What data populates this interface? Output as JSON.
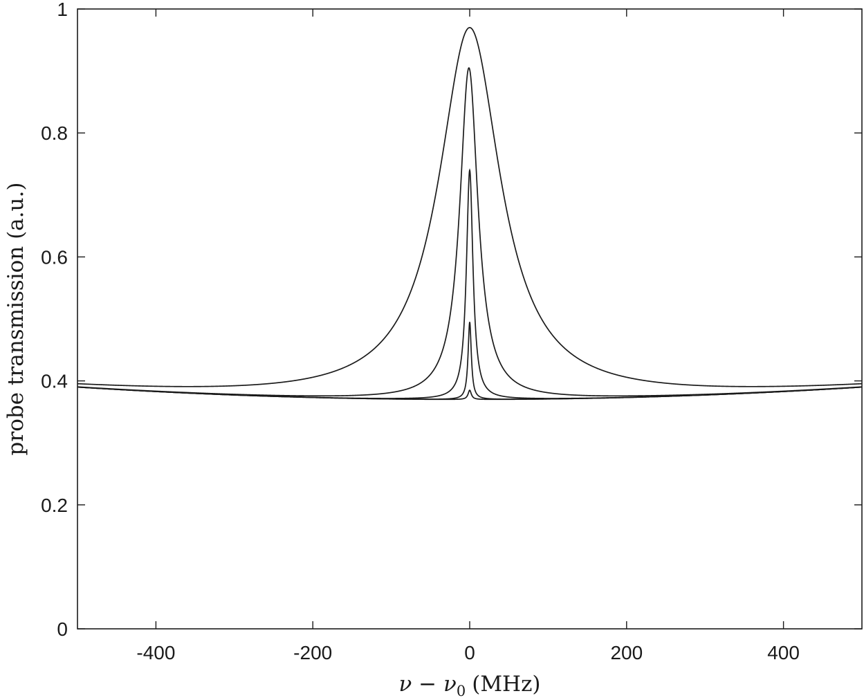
{
  "chart_data": {
    "type": "line",
    "xlabel": "ν − ν",
    "xlabel_subscript": "0",
    "xlabel_unit": "(MHz)",
    "ylabel": "probe transmission (a.u.)",
    "xlim": [
      -500,
      500
    ],
    "ylim": [
      0,
      1
    ],
    "xticks": [
      -400,
      -200,
      0,
      200,
      400
    ],
    "xtick_labels": [
      "-400",
      "-200",
      "0",
      "200",
      "400"
    ],
    "yticks": [
      0,
      0.2,
      0.4,
      0.6,
      0.8,
      1
    ],
    "ytick_labels": [
      "0",
      "0.2",
      "0.4",
      "0.6",
      "0.8",
      "1"
    ],
    "grid": false,
    "baseline": {
      "center_value": 0.37,
      "edge_value": 0.39,
      "edge_x": 500
    },
    "series": [
      {
        "peak_x": 0,
        "peak_value": 0.97,
        "hwhm": 48
      },
      {
        "peak_x": -1,
        "peak_value": 0.905,
        "hwhm": 14
      },
      {
        "peak_x": 0,
        "peak_value": 0.74,
        "hwhm": 5
      },
      {
        "peak_x": 0,
        "peak_value": 0.495,
        "hwhm": 2.5
      },
      {
        "peak_x": 0,
        "peak_value": 0.385,
        "hwhm": 2.5
      }
    ]
  }
}
